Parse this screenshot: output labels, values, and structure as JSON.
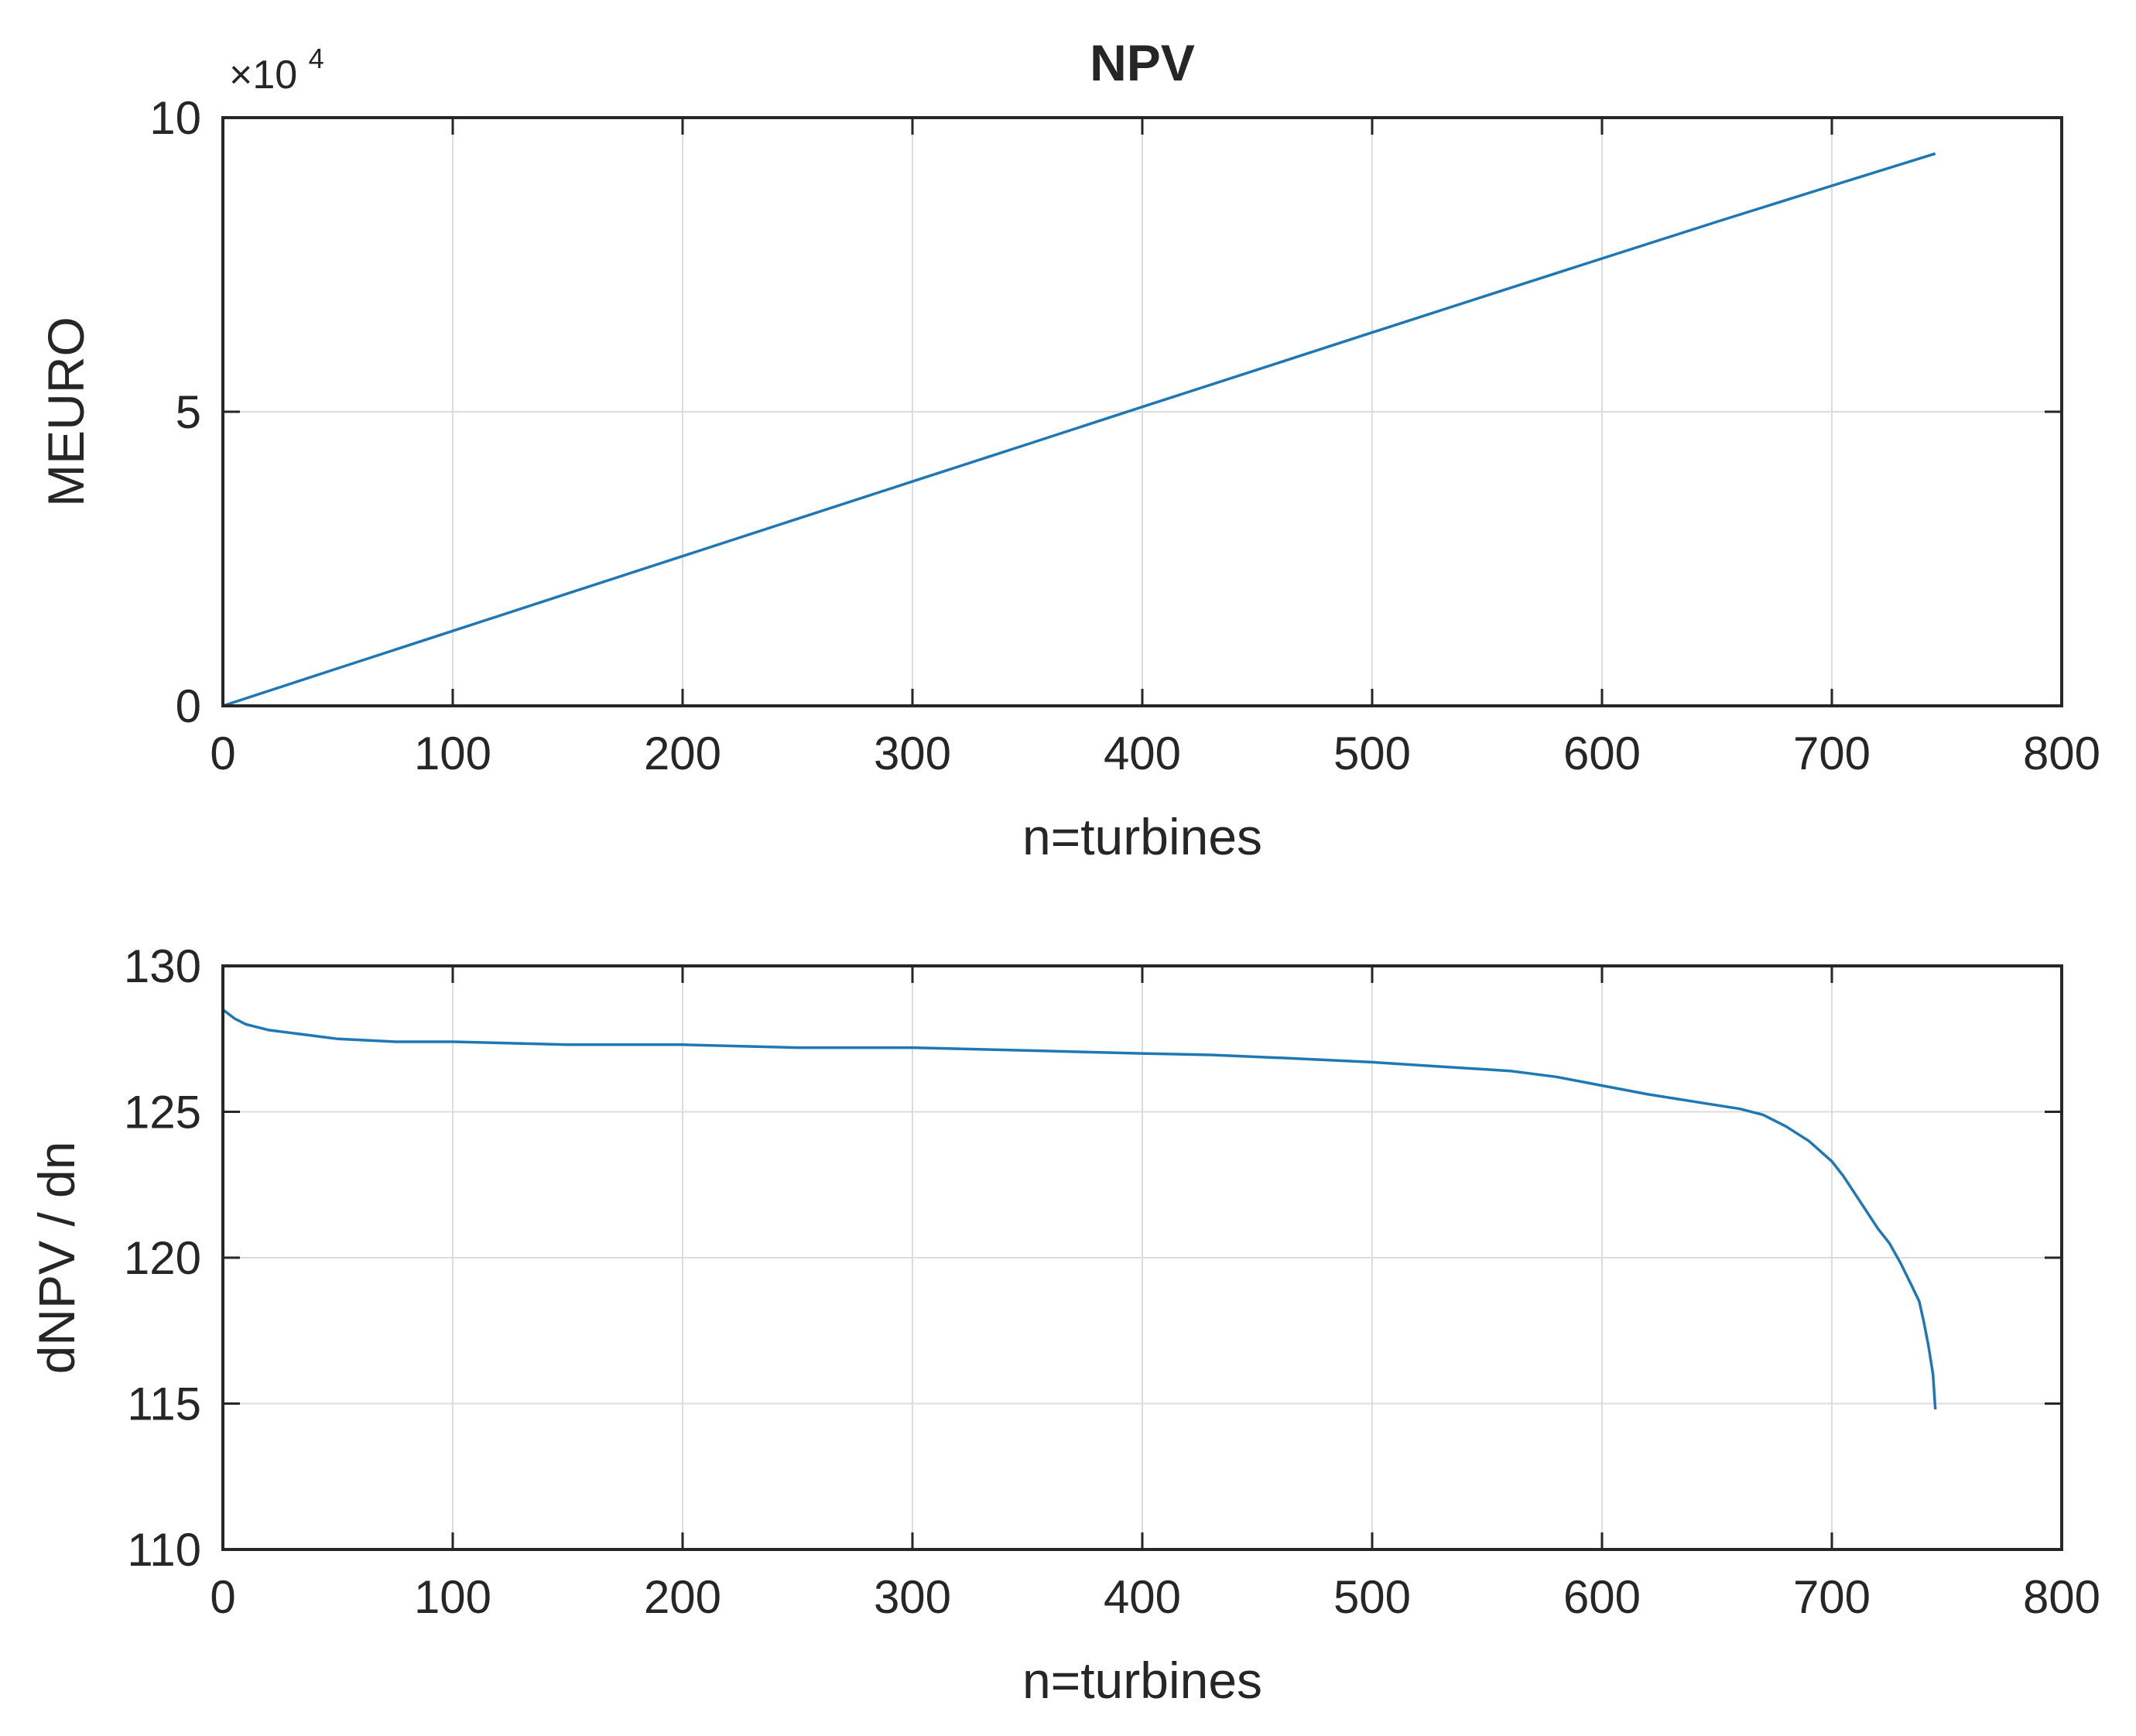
{
  "colors": {
    "line": "#1f77b4",
    "axis": "#262626",
    "grid": "#dcdcdc",
    "background": "#ffffff"
  },
  "chart_data": [
    {
      "type": "line",
      "title": "NPV",
      "xlabel": "n=turbines",
      "ylabel": "MEURO",
      "xlim": [
        0,
        800
      ],
      "ylim": [
        0,
        100000
      ],
      "grid": true,
      "exponent_label": "×10",
      "exponent_power": "4",
      "xticks": [
        0,
        100,
        200,
        300,
        400,
        500,
        600,
        700,
        800
      ],
      "xtick_labels": [
        "0",
        "100",
        "200",
        "300",
        "400",
        "500",
        "600",
        "700",
        "800"
      ],
      "yticks": [
        0,
        50000,
        100000
      ],
      "ytick_labels": [
        "0",
        "5",
        "10"
      ],
      "series": [
        {
          "name": "NPV",
          "x": [
            0,
            50,
            100,
            150,
            200,
            250,
            300,
            350,
            400,
            450,
            500,
            550,
            600,
            650,
            700,
            745
          ],
          "y": [
            0,
            6380,
            12740,
            19100,
            25450,
            31800,
            38150,
            44480,
            50830,
            57150,
            63480,
            69780,
            76050,
            82300,
            88420,
            93900
          ]
        }
      ]
    },
    {
      "type": "line",
      "title": "",
      "xlabel": "n=turbines",
      "ylabel": "dNPV / dn",
      "xlim": [
        0,
        800
      ],
      "ylim": [
        110,
        130
      ],
      "grid": true,
      "xticks": [
        0,
        100,
        200,
        300,
        400,
        500,
        600,
        700,
        800
      ],
      "xtick_labels": [
        "0",
        "100",
        "200",
        "300",
        "400",
        "500",
        "600",
        "700",
        "800"
      ],
      "yticks": [
        110,
        115,
        120,
        125,
        130
      ],
      "ytick_labels": [
        "110",
        "115",
        "120",
        "125",
        "130"
      ],
      "series": [
        {
          "name": "dNPV / dn",
          "x": [
            0,
            5,
            10,
            20,
            30,
            50,
            75,
            100,
            150,
            200,
            250,
            300,
            350,
            400,
            430,
            460,
            500,
            530,
            560,
            580,
            600,
            620,
            640,
            660,
            670,
            680,
            690,
            700,
            705,
            710,
            715,
            720,
            725,
            730,
            735,
            738,
            740,
            742,
            744,
            745
          ],
          "y": [
            128.5,
            128.2,
            128.0,
            127.8,
            127.7,
            127.5,
            127.4,
            127.4,
            127.3,
            127.3,
            127.2,
            127.2,
            127.1,
            127.0,
            126.95,
            126.85,
            126.7,
            126.55,
            126.4,
            126.2,
            125.9,
            125.6,
            125.35,
            125.1,
            124.9,
            124.5,
            124.0,
            123.3,
            122.8,
            122.2,
            121.6,
            121.0,
            120.5,
            119.8,
            119.0,
            118.5,
            117.8,
            117.0,
            116.0,
            114.8
          ]
        }
      ]
    }
  ]
}
